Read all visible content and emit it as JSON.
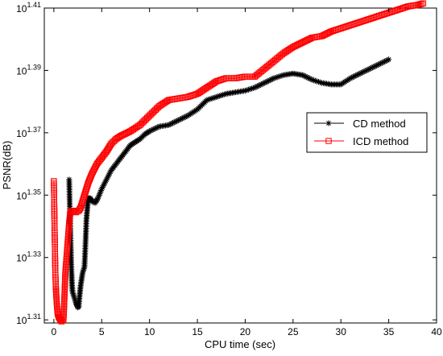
{
  "chart_data": {
    "type": "line",
    "title": "",
    "xlabel": "CPU time (sec)",
    "ylabel": "PSNR(dB)",
    "xlim": [
      -1,
      40
    ],
    "ylim": [
      1.309,
      1.41
    ],
    "y_scale": "log10 (tick labels shown as powers of 10)",
    "x_ticks": [
      "0",
      "5",
      "10",
      "15",
      "20",
      "25",
      "30",
      "35",
      "40"
    ],
    "y_ticks": [
      {
        "base": "10",
        "exp": "1.31",
        "value": 1.31
      },
      {
        "base": "10",
        "exp": "1.33",
        "value": 1.33
      },
      {
        "base": "10",
        "exp": "1.35",
        "value": 1.35
      },
      {
        "base": "10",
        "exp": "1.37",
        "value": 1.37
      },
      {
        "base": "10",
        "exp": "1.39",
        "value": 1.39
      },
      {
        "base": "10",
        "exp": "1.41",
        "value": 1.41
      }
    ],
    "grid": false,
    "legend_position": "right-middle",
    "series": [
      {
        "name": "CD method",
        "color": "#000000",
        "marker": "asterisk",
        "points": [
          [
            1.6,
            1.355
          ],
          [
            1.65,
            1.348
          ],
          [
            1.7,
            1.342
          ],
          [
            1.75,
            1.336
          ],
          [
            1.8,
            1.33
          ],
          [
            1.85,
            1.325
          ],
          [
            1.9,
            1.321
          ],
          [
            1.95,
            1.319
          ],
          [
            2.0,
            1.3185
          ],
          [
            2.1,
            1.3175
          ],
          [
            2.2,
            1.3165
          ],
          [
            2.3,
            1.3155
          ],
          [
            2.4,
            1.3148
          ],
          [
            2.5,
            1.314
          ],
          [
            2.6,
            1.3142
          ],
          [
            2.7,
            1.318
          ],
          [
            2.8,
            1.321
          ],
          [
            2.9,
            1.323
          ],
          [
            3.0,
            1.325
          ],
          [
            3.1,
            1.326
          ],
          [
            3.2,
            1.327
          ],
          [
            3.3,
            1.334
          ],
          [
            3.4,
            1.342
          ],
          [
            3.5,
            1.346
          ],
          [
            3.6,
            1.349
          ],
          [
            3.8,
            1.349
          ],
          [
            4.0,
            1.348
          ],
          [
            4.3,
            1.3475
          ],
          [
            4.6,
            1.349
          ],
          [
            5.0,
            1.352
          ],
          [
            5.5,
            1.355
          ],
          [
            6,
            1.358
          ],
          [
            6.5,
            1.36
          ],
          [
            7,
            1.362
          ],
          [
            7.5,
            1.364
          ],
          [
            8,
            1.366
          ],
          [
            8.5,
            1.367
          ],
          [
            9,
            1.368
          ],
          [
            9.5,
            1.3695
          ],
          [
            10,
            1.3705
          ],
          [
            11,
            1.372
          ],
          [
            12,
            1.3725
          ],
          [
            13,
            1.374
          ],
          [
            14,
            1.3755
          ],
          [
            15,
            1.3775
          ],
          [
            16,
            1.3805
          ],
          [
            17,
            1.3815
          ],
          [
            18,
            1.3825
          ],
          [
            19,
            1.383
          ],
          [
            20,
            1.3835
          ],
          [
            21,
            1.3845
          ],
          [
            22,
            1.386
          ],
          [
            23,
            1.3875
          ],
          [
            24,
            1.3885
          ],
          [
            25,
            1.389
          ],
          [
            26,
            1.3885
          ],
          [
            27,
            1.387
          ],
          [
            28,
            1.386
          ],
          [
            29,
            1.3855
          ],
          [
            30,
            1.3855
          ],
          [
            31,
            1.3875
          ],
          [
            32,
            1.389
          ],
          [
            33,
            1.3905
          ],
          [
            34,
            1.392
          ],
          [
            35,
            1.3935
          ]
        ]
      },
      {
        "name": "ICD method",
        "color": "#ff0000",
        "marker": "square",
        "points": [
          [
            0.0,
            1.3545
          ],
          [
            0.05,
            1.345
          ],
          [
            0.1,
            1.335
          ],
          [
            0.15,
            1.326
          ],
          [
            0.2,
            1.321
          ],
          [
            0.25,
            1.318
          ],
          [
            0.3,
            1.3155
          ],
          [
            0.35,
            1.3135
          ],
          [
            0.4,
            1.312
          ],
          [
            0.5,
            1.311
          ],
          [
            0.6,
            1.3105
          ],
          [
            0.7,
            1.31
          ],
          [
            0.8,
            1.3095
          ],
          [
            0.9,
            1.3098
          ],
          [
            1.0,
            1.31
          ],
          [
            1.05,
            1.313
          ],
          [
            1.1,
            1.317
          ],
          [
            1.15,
            1.321
          ],
          [
            1.2,
            1.325
          ],
          [
            1.3,
            1.329
          ],
          [
            1.4,
            1.333
          ],
          [
            1.5,
            1.337
          ],
          [
            1.6,
            1.341
          ],
          [
            1.7,
            1.344
          ],
          [
            1.8,
            1.345
          ],
          [
            2.0,
            1.345
          ],
          [
            2.3,
            1.3445
          ],
          [
            2.6,
            1.345
          ],
          [
            2.8,
            1.346
          ],
          [
            3.0,
            1.348
          ],
          [
            3.3,
            1.351
          ],
          [
            3.6,
            1.354
          ],
          [
            4.0,
            1.357
          ],
          [
            4.5,
            1.36
          ],
          [
            5,
            1.362
          ],
          [
            5.5,
            1.364
          ],
          [
            6,
            1.3665
          ],
          [
            6.5,
            1.368
          ],
          [
            7,
            1.369
          ],
          [
            8,
            1.3705
          ],
          [
            9,
            1.3725
          ],
          [
            10,
            1.3755
          ],
          [
            11,
            1.3785
          ],
          [
            12,
            1.3805
          ],
          [
            13,
            1.381
          ],
          [
            14,
            1.3815
          ],
          [
            15,
            1.3825
          ],
          [
            16,
            1.3845
          ],
          [
            17,
            1.3865
          ],
          [
            18,
            1.3875
          ],
          [
            19,
            1.3875
          ],
          [
            20,
            1.388
          ],
          [
            21,
            1.388
          ],
          [
            22,
            1.3905
          ],
          [
            23,
            1.393
          ],
          [
            24,
            1.3955
          ],
          [
            25,
            1.3975
          ],
          [
            26,
            1.399
          ],
          [
            27,
            1.4005
          ],
          [
            28,
            1.401
          ],
          [
            29,
            1.4025
          ],
          [
            30,
            1.4035
          ],
          [
            31,
            1.4045
          ],
          [
            32,
            1.4055
          ],
          [
            33,
            1.4065
          ],
          [
            34,
            1.4075
          ],
          [
            35,
            1.4085
          ],
          [
            36,
            1.4095
          ],
          [
            37,
            1.4105
          ],
          [
            38,
            1.411
          ],
          [
            38.6,
            1.4115
          ]
        ]
      }
    ]
  }
}
